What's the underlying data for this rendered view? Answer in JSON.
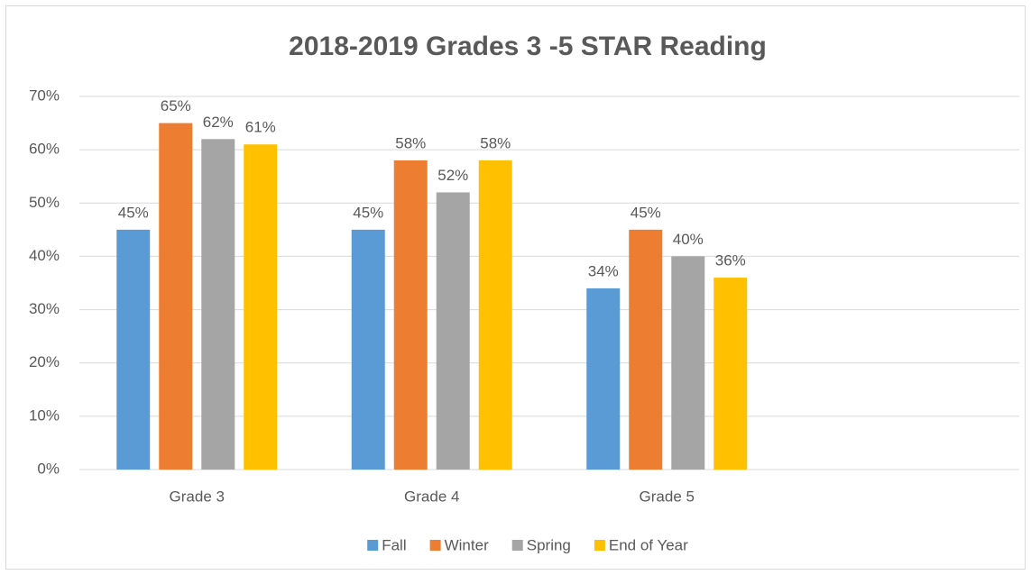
{
  "chart_data": {
    "type": "bar",
    "title": "2018-2019 Grades 3 -5 STAR Reading",
    "categories": [
      "Grade 3",
      "Grade 4",
      "Grade 5",
      null
    ],
    "series": [
      {
        "name": "Fall",
        "color": "#5b9bd5",
        "values": [
          45,
          45,
          34,
          null
        ],
        "value_labels": [
          "45%",
          "45%",
          "34%",
          null
        ]
      },
      {
        "name": "Winter",
        "color": "#ed7d31",
        "values": [
          65,
          58,
          45,
          null
        ],
        "value_labels": [
          "65%",
          "58%",
          "45%",
          null
        ]
      },
      {
        "name": "Spring",
        "color": "#a5a5a5",
        "values": [
          62,
          52,
          40,
          null
        ],
        "value_labels": [
          "62%",
          "52%",
          "40%",
          null
        ]
      },
      {
        "name": "End of Year",
        "color": "#ffc000",
        "values": [
          61,
          58,
          36,
          null
        ],
        "value_labels": [
          "61%",
          "58%",
          "36%",
          null
        ]
      }
    ],
    "ylim": [
      0,
      70
    ],
    "yticks": [
      {
        "value": 0,
        "label": "0%"
      },
      {
        "value": 10,
        "label": "10%"
      },
      {
        "value": 20,
        "label": "20%"
      },
      {
        "value": 30,
        "label": "30%"
      },
      {
        "value": 40,
        "label": "40%"
      },
      {
        "value": 50,
        "label": "50%"
      },
      {
        "value": 60,
        "label": "60%"
      },
      {
        "value": 70,
        "label": "70%"
      }
    ],
    "grid": true,
    "legend": "bottom"
  }
}
